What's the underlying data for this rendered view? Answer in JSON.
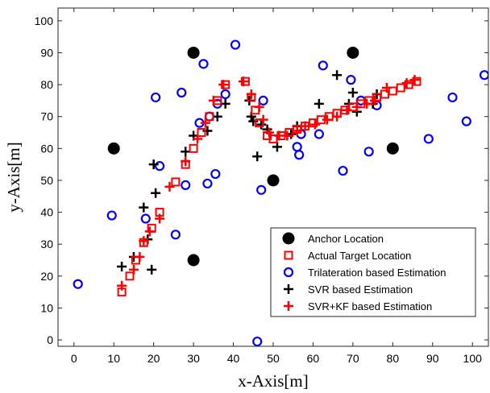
{
  "chart_data": {
    "type": "scatter",
    "xlabel": "x-Axis[m]",
    "ylabel": "y-Axis[m]",
    "xlim": [
      -4,
      104
    ],
    "ylim": [
      -2,
      104
    ],
    "xticks": [
      0,
      10,
      20,
      30,
      40,
      50,
      60,
      70,
      80,
      90,
      100
    ],
    "yticks": [
      0,
      10,
      20,
      30,
      40,
      50,
      60,
      70,
      80,
      90,
      100
    ],
    "grid": false,
    "legend_position": "bottom-right",
    "series": [
      {
        "name": "Anchor Location",
        "marker": "filled-circle",
        "color": "#000000",
        "points": [
          [
            10,
            60
          ],
          [
            30,
            90
          ],
          [
            70,
            90
          ],
          [
            80,
            60
          ],
          [
            50,
            50
          ],
          [
            30,
            25
          ]
        ]
      },
      {
        "name": "Actual Target Location",
        "marker": "square",
        "color": "#ff0000",
        "points": [
          [
            12,
            15
          ],
          [
            14,
            20
          ],
          [
            15.5,
            25
          ],
          [
            17.5,
            30.5
          ],
          [
            19.5,
            35
          ],
          [
            21.5,
            40
          ],
          [
            25.5,
            49.5
          ],
          [
            28,
            55
          ],
          [
            30,
            60
          ],
          [
            32,
            65
          ],
          [
            34,
            70
          ],
          [
            36,
            75
          ],
          [
            38,
            80
          ],
          [
            43,
            81
          ],
          [
            44.5,
            76
          ],
          [
            45.5,
            72
          ],
          [
            46.5,
            68
          ],
          [
            48.5,
            64
          ],
          [
            50,
            63
          ],
          [
            52,
            64
          ],
          [
            54,
            65
          ],
          [
            56,
            66
          ],
          [
            58,
            67
          ],
          [
            60,
            68
          ],
          [
            62,
            69
          ],
          [
            64,
            70
          ],
          [
            66,
            71
          ],
          [
            68,
            72
          ],
          [
            70,
            73
          ],
          [
            72,
            74
          ],
          [
            74,
            75
          ],
          [
            76,
            76
          ],
          [
            78,
            77
          ],
          [
            80,
            78
          ],
          [
            82,
            79
          ],
          [
            84,
            80
          ],
          [
            86,
            81
          ]
        ]
      },
      {
        "name": "Trilateration based Estimation",
        "marker": "open-circle",
        "color": "#0000ff",
        "points": [
          [
            1,
            17.5
          ],
          [
            9.5,
            39
          ],
          [
            18,
            38
          ],
          [
            20.5,
            76
          ],
          [
            21.5,
            54.5
          ],
          [
            25.5,
            33
          ],
          [
            27,
            77.5
          ],
          [
            28,
            48.5
          ],
          [
            31.5,
            68
          ],
          [
            32.5,
            86.5
          ],
          [
            33.5,
            49
          ],
          [
            34,
            70
          ],
          [
            35.5,
            52
          ],
          [
            36,
            74
          ],
          [
            38,
            77
          ],
          [
            40.5,
            92.5
          ],
          [
            46,
            -0.5
          ],
          [
            47,
            47
          ],
          [
            47.5,
            75
          ],
          [
            56,
            60.5
          ],
          [
            56.5,
            58
          ],
          [
            57,
            64.5
          ],
          [
            61.5,
            64.5
          ],
          [
            62.5,
            86
          ],
          [
            67.5,
            53
          ],
          [
            69.5,
            81.5
          ],
          [
            72,
            75
          ],
          [
            74,
            59
          ],
          [
            76,
            73.5
          ],
          [
            89,
            63
          ],
          [
            95,
            76
          ],
          [
            98.5,
            68.5
          ],
          [
            103,
            83
          ]
        ]
      },
      {
        "name": "SVR based Estimation",
        "marker": "plus",
        "color": "#000000",
        "points": [
          [
            12,
            23
          ],
          [
            15,
            26
          ],
          [
            17.5,
            41.5
          ],
          [
            18.5,
            31.5
          ],
          [
            19.5,
            22
          ],
          [
            20,
            55
          ],
          [
            20.5,
            46
          ],
          [
            28,
            59
          ],
          [
            30,
            64
          ],
          [
            33.5,
            65.5
          ],
          [
            36,
            70
          ],
          [
            38,
            74
          ],
          [
            44,
            75
          ],
          [
            44.5,
            70
          ],
          [
            45,
            68.5
          ],
          [
            46,
            57.5
          ],
          [
            47,
            67.5
          ],
          [
            48.5,
            66
          ],
          [
            51,
            60.5
          ],
          [
            54.5,
            64.5
          ],
          [
            56,
            67
          ],
          [
            61.5,
            74
          ],
          [
            66,
            83
          ],
          [
            69,
            74
          ],
          [
            70,
            77.5
          ],
          [
            71,
            71.5
          ],
          [
            75,
            74
          ],
          [
            76,
            77
          ]
        ]
      },
      {
        "name": "SVR+KF based Estimation",
        "marker": "plus",
        "color": "#ff0000",
        "points": [
          [
            12,
            17
          ],
          [
            15,
            22
          ],
          [
            16.5,
            26
          ],
          [
            17.5,
            31
          ],
          [
            19,
            34
          ],
          [
            21.5,
            38
          ],
          [
            24,
            48
          ],
          [
            28,
            56
          ],
          [
            31,
            63
          ],
          [
            33,
            68
          ],
          [
            35,
            75
          ],
          [
            37.5,
            80
          ],
          [
            42.5,
            81
          ],
          [
            44.5,
            77
          ],
          [
            46.5,
            73
          ],
          [
            47.5,
            69
          ],
          [
            49,
            65
          ],
          [
            51.5,
            64
          ],
          [
            53.5,
            64
          ],
          [
            56,
            65.5
          ],
          [
            58,
            67
          ],
          [
            60.5,
            67.5
          ],
          [
            63.5,
            69
          ],
          [
            66,
            70
          ],
          [
            68.5,
            72
          ],
          [
            71,
            73
          ],
          [
            73.5,
            74
          ],
          [
            75.5,
            75
          ],
          [
            78.5,
            79
          ],
          [
            83.5,
            80.5
          ],
          [
            85.5,
            81.5
          ]
        ]
      }
    ]
  }
}
